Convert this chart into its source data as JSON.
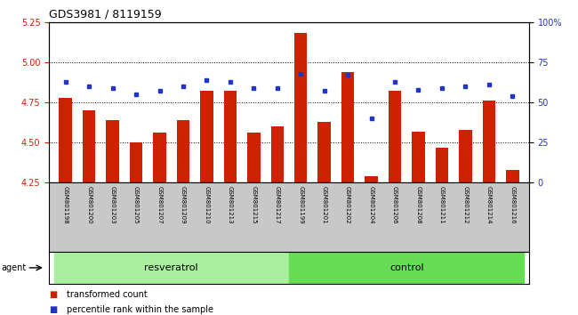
{
  "title": "GDS3981 / 8119159",
  "samples": [
    "GSM801198",
    "GSM801200",
    "GSM801203",
    "GSM801205",
    "GSM801207",
    "GSM801209",
    "GSM801210",
    "GSM801213",
    "GSM801215",
    "GSM801217",
    "GSM801199",
    "GSM801201",
    "GSM801202",
    "GSM801204",
    "GSM801206",
    "GSM801208",
    "GSM801211",
    "GSM801212",
    "GSM801214",
    "GSM801216"
  ],
  "bar_values": [
    4.78,
    4.7,
    4.64,
    4.5,
    4.56,
    4.64,
    4.82,
    4.82,
    4.56,
    4.6,
    5.18,
    4.63,
    4.94,
    4.29,
    4.82,
    4.57,
    4.47,
    4.58,
    4.76,
    4.33
  ],
  "dot_values": [
    63,
    60,
    59,
    55,
    57,
    60,
    64,
    63,
    59,
    59,
    68,
    57,
    67,
    40,
    63,
    58,
    59,
    60,
    61,
    54
  ],
  "resveratrol_count": 10,
  "control_count": 10,
  "ylim_left": [
    4.25,
    5.25
  ],
  "ylim_right": [
    0,
    100
  ],
  "yticks_left": [
    4.25,
    4.5,
    4.75,
    5.0,
    5.25
  ],
  "ytick_labels_right": [
    "0",
    "25",
    "50",
    "75",
    "100%"
  ],
  "yticks_right": [
    0,
    25,
    50,
    75,
    100
  ],
  "bar_color": "#CC2200",
  "dot_color": "#2233CC",
  "bg_plot": "#FFFFFF",
  "bg_xtick": "#C8C8C8",
  "bg_resveratrol": "#AAEEA0",
  "bg_control": "#66DD55",
  "agent_label": "agent",
  "resveratrol_label": "resveratrol",
  "control_label": "control",
  "legend_bar": "transformed count",
  "legend_dot": "percentile rank within the sample",
  "left_tick_color": "#CC2200",
  "right_tick_color": "#2233CC",
  "bar_width": 0.55
}
